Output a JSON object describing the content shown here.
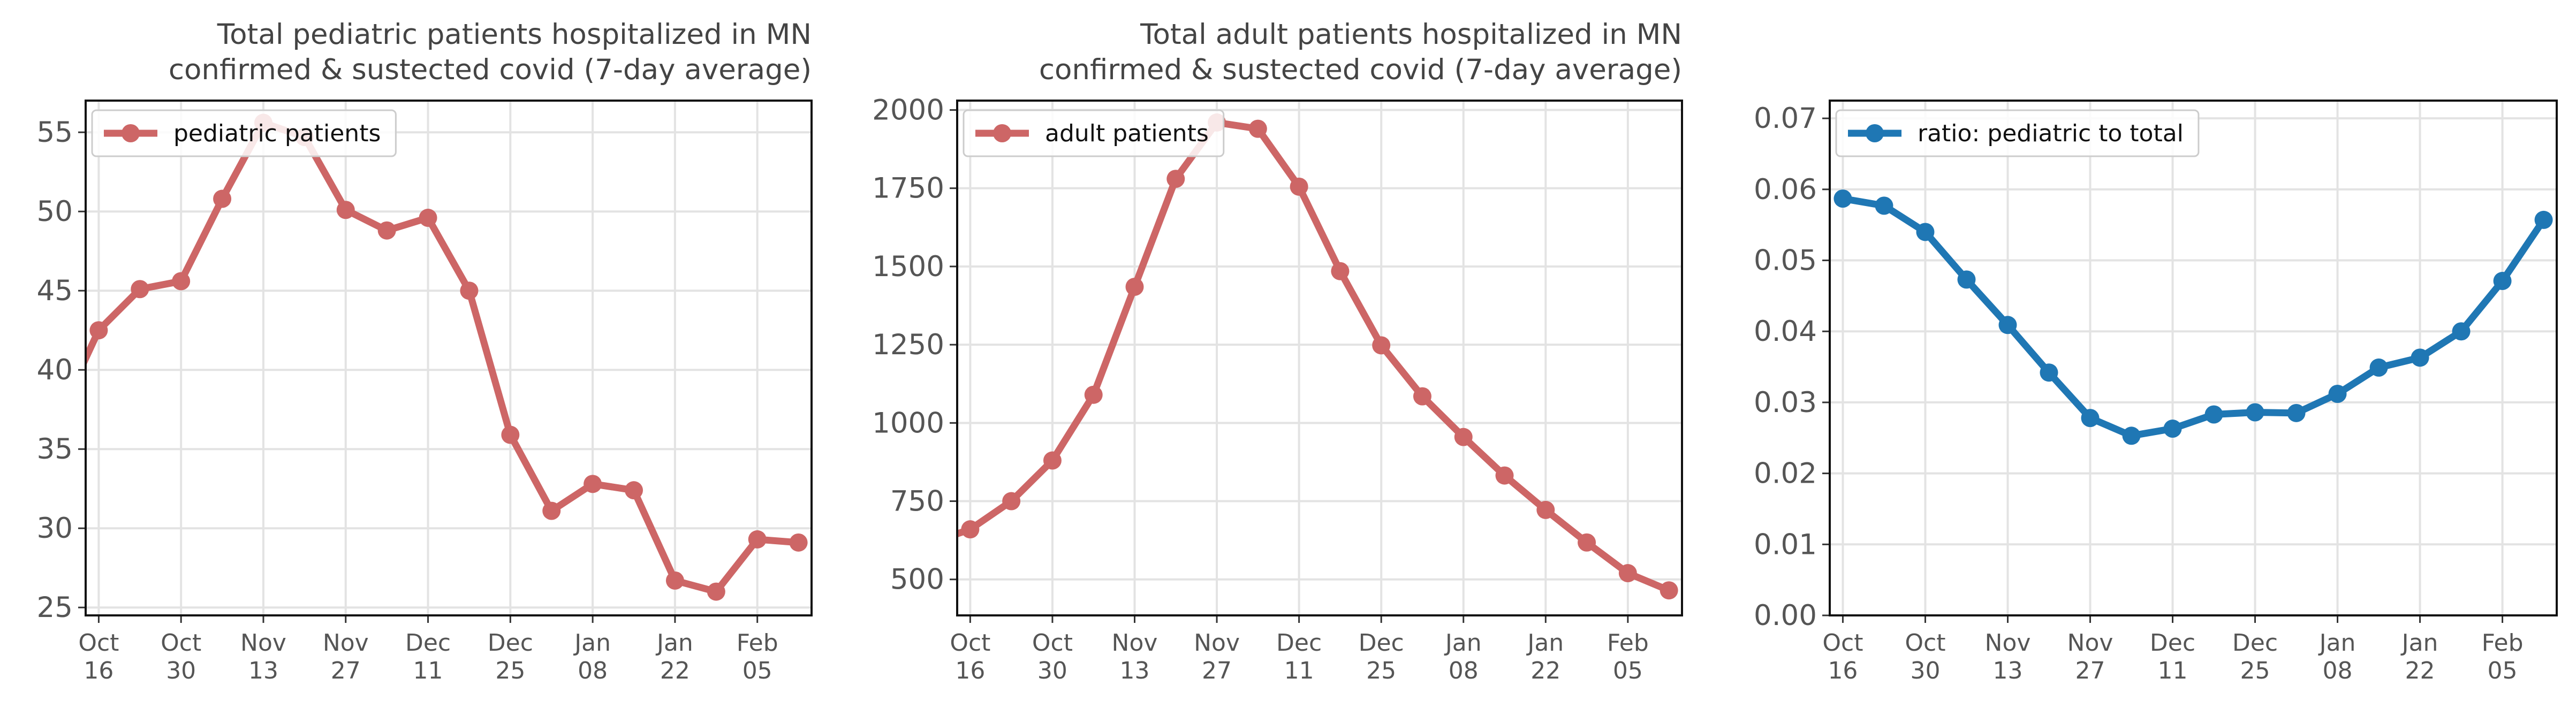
{
  "chart_data": [
    {
      "type": "line",
      "title": "Total pediatric patients hospitalized in MN\nconfirmed & sustected covid (7-day average)",
      "x": [
        "2021-10-16",
        "2021-10-23",
        "2021-10-30",
        "2021-11-06",
        "2021-11-13",
        "2021-11-20",
        "2021-11-27",
        "2021-12-04",
        "2021-12-11",
        "2021-12-18",
        "2021-12-25",
        "2022-01-01",
        "2022-01-08",
        "2022-01-15",
        "2022-01-22",
        "2022-01-29",
        "2022-02-05",
        "2022-02-12"
      ],
      "x_tick_labels": [
        "Oct\n16",
        "Oct\n30",
        "Nov\n13",
        "Nov\n27",
        "Dec\n11",
        "Dec\n25",
        "Jan\n08",
        "Jan\n22",
        "Feb\n05"
      ],
      "y_ticks": [
        "25",
        "30",
        "35",
        "40",
        "45",
        "50",
        "55"
      ],
      "ylim": [
        24.5,
        57
      ],
      "series": [
        {
          "name": "pediatric patients",
          "color": "#cd6666",
          "values": [
            42.5,
            45.1,
            45.6,
            50.8,
            55.6,
            54.7,
            50.1,
            48.8,
            49.6,
            45.0,
            35.9,
            31.1,
            32.8,
            32.4,
            26.7,
            26.0,
            29.3,
            29.1
          ],
          "left_value": 40.0
        }
      ],
      "legend": "upper-left",
      "grid": true
    },
    {
      "type": "line",
      "title": "Total adult patients hospitalized in MN\nconfirmed & sustected covid (7-day average)",
      "x": [
        "2021-10-16",
        "2021-10-23",
        "2021-10-30",
        "2021-11-06",
        "2021-11-13",
        "2021-11-20",
        "2021-11-27",
        "2021-12-04",
        "2021-12-11",
        "2021-12-18",
        "2021-12-25",
        "2022-01-01",
        "2022-01-08",
        "2022-01-15",
        "2022-01-22",
        "2022-01-29",
        "2022-02-05",
        "2022-02-12"
      ],
      "x_tick_labels": [
        "Oct\n16",
        "Oct\n30",
        "Nov\n13",
        "Nov\n27",
        "Dec\n11",
        "Dec\n25",
        "Jan\n08",
        "Jan\n22",
        "Feb\n05"
      ],
      "y_ticks": [
        "500",
        "750",
        "1000",
        "1250",
        "1500",
        "1750",
        "2000"
      ],
      "ylim": [
        385,
        2030
      ],
      "series": [
        {
          "name": "adult patients",
          "color": "#cd6666",
          "values": [
            660,
            750,
            880,
            1090,
            1435,
            1780,
            1960,
            1940,
            1755,
            1485,
            1248,
            1085,
            955,
            832,
            722,
            618,
            520,
            465
          ],
          "left_value": 640
        }
      ],
      "legend": "upper-left",
      "grid": true
    },
    {
      "type": "line",
      "title": "",
      "x": [
        "2021-10-16",
        "2021-10-23",
        "2021-10-30",
        "2021-11-06",
        "2021-11-13",
        "2021-11-20",
        "2021-11-27",
        "2021-12-04",
        "2021-12-11",
        "2021-12-18",
        "2021-12-25",
        "2022-01-01",
        "2022-01-08",
        "2022-01-15",
        "2022-01-22",
        "2022-01-29",
        "2022-02-05",
        "2022-02-12"
      ],
      "x_tick_labels": [
        "Oct\n16",
        "Oct\n30",
        "Nov\n13",
        "Nov\n27",
        "Dec\n11",
        "Dec\n25",
        "Jan\n08",
        "Jan\n22",
        "Feb\n05"
      ],
      "y_ticks": [
        "0.00",
        "0.01",
        "0.02",
        "0.03",
        "0.04",
        "0.05",
        "0.06",
        "0.07"
      ],
      "ylim": [
        0,
        0.0725
      ],
      "series": [
        {
          "name": "ratio: pediatric to total",
          "color": "#1f77b4",
          "values": [
            0.0587,
            0.0577,
            0.054,
            0.0473,
            0.0409,
            0.0342,
            0.0278,
            0.0253,
            0.0263,
            0.0283,
            0.0286,
            0.0285,
            0.0312,
            0.0349,
            0.0363,
            0.04,
            0.0471,
            0.0557
          ]
        }
      ],
      "legend": "upper-left",
      "grid": true
    }
  ]
}
